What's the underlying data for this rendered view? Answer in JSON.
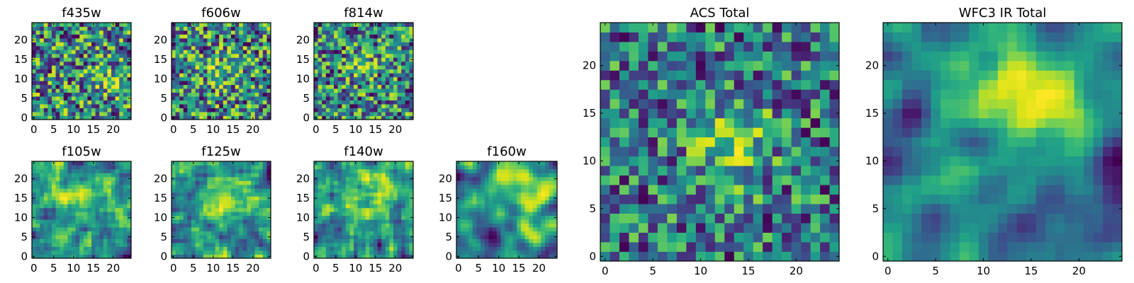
{
  "chart_data": [
    {
      "type": "heatmap",
      "title": "f435w",
      "xlim": [
        0,
        25
      ],
      "ylim": [
        0,
        25
      ],
      "xticks": [
        0,
        5,
        10,
        15,
        20
      ],
      "yticks": [
        0,
        5,
        10,
        15,
        20
      ],
      "xtick_labels": [
        "0",
        "5",
        "10",
        "15",
        "20"
      ],
      "ytick_labels": [
        "0",
        "5",
        "10",
        "15",
        "20"
      ],
      "colormap": "viridis",
      "grid_size": [
        25,
        25
      ],
      "pattern": {
        "seed": 11,
        "smooth": 0,
        "scale": 1.0,
        "blob": [
          0.75,
          0.45,
          0.1,
          0.5
        ]
      }
    },
    {
      "type": "heatmap",
      "title": "f606w",
      "xlim": [
        0,
        25
      ],
      "ylim": [
        0,
        25
      ],
      "xticks": [
        0,
        5,
        10,
        15,
        20
      ],
      "yticks": [
        0,
        5,
        10,
        15,
        20
      ],
      "xtick_labels": [
        "0",
        "5",
        "10",
        "15",
        "20"
      ],
      "ytick_labels": [
        "0",
        "5",
        "10",
        "15",
        "20"
      ],
      "colormap": "viridis",
      "grid_size": [
        25,
        25
      ],
      "pattern": {
        "seed": 23,
        "smooth": 0,
        "scale": 1.0,
        "blob": [
          0.5,
          0.5,
          0.12,
          0.5
        ]
      }
    },
    {
      "type": "heatmap",
      "title": "f814w",
      "xlim": [
        0,
        25
      ],
      "ylim": [
        0,
        25
      ],
      "xticks": [
        0,
        5,
        10,
        15,
        20
      ],
      "yticks": [
        0,
        5,
        10,
        15,
        20
      ],
      "xtick_labels": [
        "0",
        "5",
        "10",
        "15",
        "20"
      ],
      "ytick_labels": [
        "0",
        "5",
        "10",
        "15",
        "20"
      ],
      "colormap": "viridis",
      "grid_size": [
        25,
        25
      ],
      "pattern": {
        "seed": 37,
        "smooth": 0,
        "scale": 1.0,
        "blob": [
          0.5,
          0.55,
          0.12,
          0.5
        ]
      }
    },
    {
      "type": "heatmap",
      "title": "f105w",
      "xlim": [
        0,
        25
      ],
      "ylim": [
        0,
        25
      ],
      "xticks": [
        0,
        5,
        10,
        15,
        20
      ],
      "yticks": [
        0,
        5,
        10,
        15,
        20
      ],
      "xtick_labels": [
        "0",
        "5",
        "10",
        "15",
        "20"
      ],
      "ytick_labels": [
        "0",
        "5",
        "10",
        "15",
        "20"
      ],
      "colormap": "viridis",
      "grid_size": [
        25,
        25
      ],
      "pattern": {
        "seed": 41,
        "smooth": 1,
        "scale": 1.0,
        "blob": [
          0.55,
          0.65,
          0.15,
          0.7
        ]
      }
    },
    {
      "type": "heatmap",
      "title": "f125w",
      "xlim": [
        0,
        25
      ],
      "ylim": [
        0,
        25
      ],
      "xticks": [
        0,
        5,
        10,
        15,
        20
      ],
      "yticks": [
        0,
        5,
        10,
        15,
        20
      ],
      "xtick_labels": [
        "0",
        "5",
        "10",
        "15",
        "20"
      ],
      "ytick_labels": [
        "0",
        "5",
        "10",
        "15",
        "20"
      ],
      "colormap": "viridis",
      "grid_size": [
        25,
        25
      ],
      "pattern": {
        "seed": 53,
        "smooth": 1,
        "scale": 1.0,
        "blob": [
          0.55,
          0.6,
          0.15,
          0.7
        ]
      }
    },
    {
      "type": "heatmap",
      "title": "f140w",
      "xlim": [
        0,
        25
      ],
      "ylim": [
        0,
        25
      ],
      "xticks": [
        0,
        5,
        10,
        15,
        20
      ],
      "yticks": [
        0,
        5,
        10,
        15,
        20
      ],
      "xtick_labels": [
        "0",
        "5",
        "10",
        "15",
        "20"
      ],
      "ytick_labels": [
        "0",
        "5",
        "10",
        "15",
        "20"
      ],
      "colormap": "viridis",
      "grid_size": [
        25,
        25
      ],
      "pattern": {
        "seed": 67,
        "smooth": 1,
        "scale": 1.0,
        "blob": [
          0.6,
          0.75,
          0.18,
          0.8
        ]
      }
    },
    {
      "type": "heatmap",
      "title": "f160w",
      "xlim": [
        0,
        25
      ],
      "ylim": [
        0,
        25
      ],
      "xticks": [
        0,
        5,
        10,
        15,
        20
      ],
      "yticks": [
        0,
        5,
        10,
        15,
        20
      ],
      "xtick_labels": [
        "0",
        "5",
        "10",
        "15",
        "20"
      ],
      "ytick_labels": [
        "0",
        "5",
        "10",
        "15",
        "20"
      ],
      "colormap": "viridis",
      "grid_size": [
        25,
        25
      ],
      "pattern": {
        "seed": 79,
        "smooth": 2,
        "scale": 1.0,
        "blob": [
          0.65,
          0.75,
          0.18,
          0.8
        ]
      }
    },
    {
      "type": "heatmap",
      "title": "ACS Total",
      "xlim": [
        0,
        25
      ],
      "ylim": [
        0,
        25
      ],
      "xticks": [
        0,
        5,
        10,
        15,
        20
      ],
      "yticks": [
        0,
        5,
        10,
        15,
        20
      ],
      "xtick_labels": [
        "0",
        "5",
        "10",
        "15",
        "20"
      ],
      "ytick_labels": [
        "0",
        "5",
        "10",
        "15",
        "20"
      ],
      "colormap": "viridis",
      "grid_size": [
        25,
        25
      ],
      "pattern": {
        "seed": 97,
        "smooth": 0,
        "scale": 0.7,
        "blob": [
          0.55,
          0.5,
          0.12,
          0.7
        ]
      }
    },
    {
      "type": "heatmap",
      "title": "WFC3 IR Total",
      "xlim": [
        0,
        25
      ],
      "ylim": [
        0,
        25
      ],
      "xticks": [
        0,
        5,
        10,
        15,
        20
      ],
      "yticks": [
        0,
        5,
        10,
        15,
        20
      ],
      "xtick_labels": [
        "0",
        "5",
        "10",
        "15",
        "20"
      ],
      "ytick_labels": [
        "0",
        "5",
        "10",
        "15",
        "20"
      ],
      "colormap": "viridis",
      "grid_size": [
        25,
        25
      ],
      "pattern": {
        "seed": 113,
        "smooth": 2,
        "scale": 0.8,
        "blob": [
          0.62,
          0.7,
          0.2,
          1.1
        ]
      }
    }
  ]
}
